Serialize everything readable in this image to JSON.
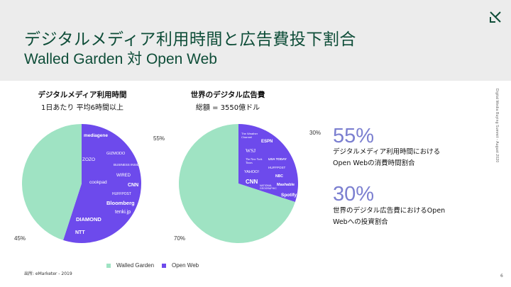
{
  "header": {
    "title": "デジタルメディア利用時間と広告費投下割合",
    "subtitle": "Walled Garden 対 Open Web"
  },
  "left_chart": {
    "heading": "デジタルメディア利用時間",
    "subheading": "1日あたり 平均6時間以上",
    "walled_label": "45%",
    "open_label": "55%",
    "brands": [
      "mediagene",
      "ZOZO",
      "cookpad",
      "GIZMODO",
      "BUSINESS INSIDER",
      "WIRED",
      "CNN",
      "HUFFPOST",
      "Bloomberg",
      "tenki.jp",
      "DIAMOND",
      "NTT"
    ]
  },
  "right_chart": {
    "heading": "世界のデジタル広告費",
    "subheading": "総額 = 3550億ドル",
    "walled_label": "70%",
    "open_label": "30%",
    "brands": [
      "The Weather Channel",
      "ESPN",
      "WSJ",
      "The New York Times",
      "USA TODAY",
      "HUFFPOST",
      "YAHOO!",
      "CNN",
      "NBC",
      "Mashable",
      "NATIONAL GEOGRAPHIC",
      "Spotify"
    ]
  },
  "stats": {
    "stat1_value": "55%",
    "stat1_line1": "デジタルメディア利用時間における",
    "stat1_line2": "Open Webの消費時間割合",
    "stat2_value": "30%",
    "stat2_line1": "世界のデジタル広告費におけるOpen",
    "stat2_line2": "Webへの投資割合"
  },
  "legend": {
    "walled_garden": "Walled Garden",
    "open_web": "Open Web"
  },
  "footer": {
    "source": "出所: eMarketer - 2019",
    "page_number": "6",
    "sidebar_note": "Digital Media Buying Summit - August 2020"
  },
  "colors": {
    "walled_garden": "#9fe3c3",
    "open_web": "#6d4aec",
    "header_bg": "#ececec",
    "title": "#0e4d38",
    "stat": "#7b7fd0"
  },
  "chart_data": [
    {
      "type": "pie",
      "title": "デジタルメディア利用時間",
      "subtitle": "1日あたり 平均6時間以上",
      "categories": [
        "Walled Garden",
        "Open Web"
      ],
      "values": [
        45,
        55
      ]
    },
    {
      "type": "pie",
      "title": "世界のデジタル広告費",
      "subtitle": "総額 = 3550億ドル",
      "categories": [
        "Walled Garden",
        "Open Web"
      ],
      "values": [
        70,
        30
      ]
    }
  ]
}
